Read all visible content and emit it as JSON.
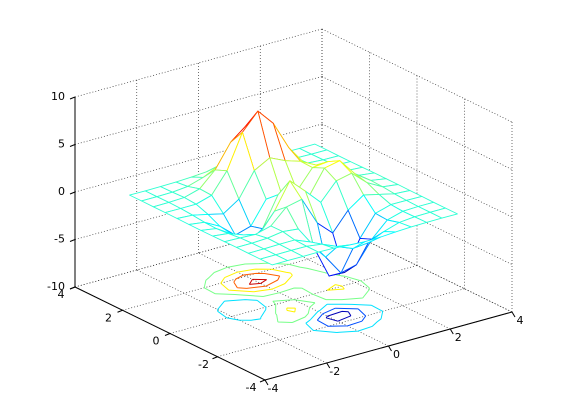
{
  "chart_data": {
    "type": "meshc",
    "x": [
      -3,
      -2.5,
      -2,
      -1.5,
      -1,
      -0.5,
      0,
      0.5,
      1,
      1.5,
      2,
      2.5,
      3
    ],
    "y": [
      -3,
      -2.5,
      -2,
      -1.5,
      -1,
      -0.5,
      0,
      0.5,
      1,
      1.5,
      2,
      2.5,
      3
    ],
    "z": [
      [
        0,
        0,
        0,
        0,
        -0.03,
        -0.14,
        -0.24,
        -0.22,
        -0.11,
        -0.03,
        0,
        0,
        0
      ],
      [
        0,
        0,
        0.02,
        0,
        -0.23,
        -0.91,
        -1.57,
        -1.41,
        -0.69,
        -0.18,
        -0.03,
        0,
        0
      ],
      [
        0,
        0.01,
        0.05,
        0.05,
        -0.59,
        -2.63,
        -4.75,
        -4.34,
        -2.1,
        -0.53,
        -0.06,
        0,
        0
      ],
      [
        0,
        0,
        0.08,
        0.33,
        0.15,
        -2.19,
        -5.68,
        -5.76,
        -2.63,
        -0.44,
        0.04,
        0.03,
        0
      ],
      [
        -0.01,
        -0.06,
        -0.13,
        0.3,
        1.86,
        2.22,
        -0.72,
        -2.22,
        -0.27,
        0.88,
        0.5,
        0.11,
        0.01
      ],
      [
        -0.03,
        -0.2,
        -0.8,
        -1.21,
        0.8,
        3.55,
        2,
        0.39,
        2.2,
        2.56,
        1.12,
        0.24,
        0.03
      ],
      [
        -0.04,
        -0.3,
        -1.33,
        -2.77,
        -1.65,
        1.48,
        0.98,
        0.38,
        2.94,
        3.27,
        1.41,
        0.3,
        0.03
      ],
      [
        -0.03,
        -0.25,
        -1.12,
        -2.49,
        -2,
        0.39,
        0.46,
        0.38,
        2.38,
        2.55,
        1.09,
        0.23,
        0.03
      ],
      [
        -0.01,
        -0.11,
        -0.48,
        -0.86,
        0.23,
        2.79,
        3.69,
        2.94,
        2.43,
        1.58,
        0.58,
        0.11,
        0.01
      ],
      [
        0,
        -0.02,
        -0.01,
        0.48,
        2.61,
        6.2,
        8,
        6.25,
        3.25,
        1.19,
        0.29,
        0.05,
        0
      ],
      [
        0,
        0.01,
        0.08,
        0.55,
        2.09,
        4.55,
        5.85,
        4.56,
        2.21,
        0.68,
        0.13,
        0.02,
        0
      ],
      [
        0,
        0,
        0.03,
        0.19,
        0.69,
        1.47,
        1.89,
        1.47,
        0.7,
        0.21,
        0.04,
        0,
        0
      ],
      [
        0,
        0,
        0,
        0.03,
        0.11,
        0.23,
        0.3,
        0.23,
        0.11,
        0.03,
        0,
        0,
        0
      ]
    ],
    "contour_levels": [
      -5,
      -3,
      -1,
      1,
      3,
      5,
      7
    ],
    "colormap": "jet",
    "xlim": [
      -4,
      4
    ],
    "ylim": [
      -4,
      4
    ],
    "zlim": [
      -10,
      10
    ],
    "xticks": [
      -4,
      -2,
      0,
      2,
      4
    ],
    "yticks": [
      -4,
      -2,
      0,
      2,
      4
    ],
    "zticks": [
      -10,
      -5,
      0,
      5,
      10
    ],
    "grid": true
  }
}
